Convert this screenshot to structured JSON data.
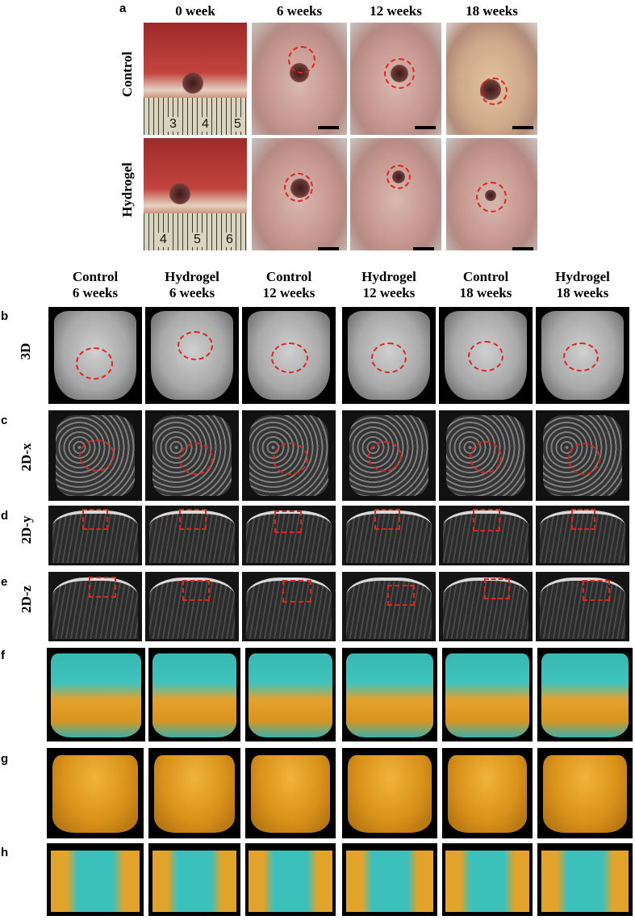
{
  "panel_a": {
    "letter": "a",
    "timepoints": [
      "0 week",
      "6 weeks",
      "12 weeks",
      "18 weeks"
    ],
    "rows": [
      "Control",
      "Hydrogel"
    ],
    "ruler_control": [
      "3",
      "4",
      "5"
    ],
    "ruler_hydrogel": [
      "4",
      "5",
      "6"
    ]
  },
  "panel_b_to_h": {
    "columns": [
      {
        "group": "Control",
        "time": "6 weeks"
      },
      {
        "group": "Hydrogel",
        "time": "6 weeks"
      },
      {
        "group": "Control",
        "time": "12 weeks"
      },
      {
        "group": "Hydrogel",
        "time": "12 weeks"
      },
      {
        "group": "Control",
        "time": "18 weeks"
      },
      {
        "group": "Hydrogel",
        "time": "18 weeks"
      }
    ],
    "rows": [
      {
        "letter": "b",
        "label": "3D"
      },
      {
        "letter": "c",
        "label": "2D-x"
      },
      {
        "letter": "d",
        "label": "2D-y"
      },
      {
        "letter": "e",
        "label": "2D-z"
      },
      {
        "letter": "f",
        "label": ""
      },
      {
        "letter": "g",
        "label": ""
      },
      {
        "letter": "h",
        "label": ""
      }
    ]
  },
  "colors": {
    "annotation_red": "#e0241c",
    "reconstruction_teal": "#3fc3bd",
    "reconstruction_orange": "#e3a12c"
  }
}
